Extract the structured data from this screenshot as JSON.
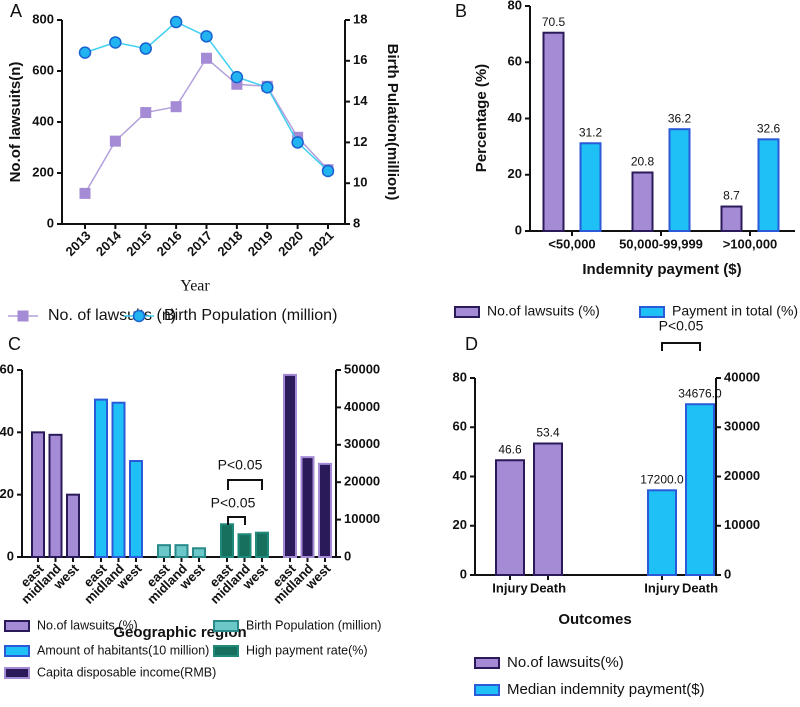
{
  "chart_data": [
    {
      "type": "line",
      "title": "A",
      "x_label": "Year",
      "y_label": "No.of lawsuits(n)",
      "y2_label": "Birth Pulation(million)",
      "categories": [
        "2013",
        "2014",
        "2015",
        "2016",
        "2017",
        "2018",
        "2019",
        "2020",
        "2021"
      ],
      "ylim": [
        0,
        800
      ],
      "yticks": [
        0,
        200,
        400,
        600,
        800
      ],
      "y2lim": [
        8,
        18
      ],
      "y2ticks": [
        8,
        10,
        12,
        14,
        16,
        18
      ],
      "series": [
        {
          "name": "No. of lawsuits (n)",
          "color": "#b3a0dc",
          "marker": "square",
          "marker_color": "#a58bd6",
          "marker_stroke": "#a58bd6",
          "values": [
            120,
            325,
            437,
            460,
            650,
            548,
            540,
            340,
            213
          ]
        },
        {
          "name": "Birth Population (million)",
          "color": "#3fd0f2",
          "marker": "circle",
          "marker_color": "#22b4f0",
          "marker_stroke": "#1a62d0",
          "axis": "y2",
          "values": [
            16.4,
            16.9,
            16.6,
            17.9,
            17.2,
            15.2,
            14.7,
            12.0,
            10.6
          ]
        }
      ]
    },
    {
      "type": "bar",
      "title": "B",
      "x_label": "Indemnity payment ($)",
      "y_label": "Percentage  (%)",
      "categories": [
        "<50,000",
        "50,000-99,999",
        ">100,000"
      ],
      "ylim": [
        0,
        80
      ],
      "yticks": [
        0,
        20,
        40,
        60,
        80
      ],
      "series": [
        {
          "name": "No.of lawsuits (%)",
          "color": "#a58bd6",
          "stroke": "#2b1a5a",
          "values": [
            70.5,
            20.8,
            8.7
          ]
        },
        {
          "name": "Payment in total (%)",
          "color": "#1ec0f5",
          "stroke": "#2a5ad8",
          "values": [
            31.2,
            36.2,
            32.6
          ]
        }
      ]
    },
    {
      "type": "bar",
      "title": "C",
      "x_label": "Geographic region",
      "categories": [
        "east",
        "midland",
        "west",
        "east",
        "midland",
        "west",
        "east",
        "midland",
        "west",
        "east",
        "midland",
        "west",
        "east",
        "midland",
        "west"
      ],
      "ylim": [
        0,
        60
      ],
      "yticks": [
        0,
        20,
        40,
        60
      ],
      "y2lim": [
        0,
        50000
      ],
      "y2ticks": [
        0,
        10000,
        20000,
        30000,
        40000,
        50000
      ],
      "annotations": [
        "P<0.05",
        "P<0.05"
      ],
      "series": [
        {
          "name": "No.of lawsuits (%)",
          "color": "#a58bd6",
          "stroke": "#2b1a5a",
          "values": [
            40,
            39.2,
            20,
            null,
            null,
            null,
            null,
            null,
            null,
            null,
            null,
            null,
            null,
            null,
            null
          ]
        },
        {
          "name": "Amount of habitants(10 million)",
          "color": "#1ec0f5",
          "stroke": "#2a5ad8",
          "values": [
            null,
            null,
            null,
            50.5,
            49.5,
            30.8,
            null,
            null,
            null,
            null,
            null,
            null,
            null,
            null,
            null
          ]
        },
        {
          "name": "Birth Population (million)",
          "color": "#6cc8c8",
          "stroke": "#2a8a8a",
          "values": [
            null,
            null,
            null,
            null,
            null,
            null,
            3.8,
            3.8,
            2.8,
            null,
            null,
            null,
            null,
            null,
            null
          ]
        },
        {
          "name": "High payment rate(%)",
          "color": "#17705e",
          "stroke": "#1f8a7a",
          "values": [
            null,
            null,
            null,
            null,
            null,
            null,
            null,
            null,
            null,
            10.5,
            7.3,
            7.8,
            null,
            null,
            null
          ]
        },
        {
          "name": "Capita disposable income(RMB)",
          "color": "#2b1a5a",
          "stroke": "#a58bd6",
          "axis": "y2",
          "values": [
            null,
            null,
            null,
            null,
            null,
            null,
            null,
            null,
            null,
            null,
            null,
            null,
            48700,
            26700,
            24900
          ]
        }
      ]
    },
    {
      "type": "bar",
      "title": "D",
      "x_label": "Outcomes",
      "categories": [
        "Injury",
        "Death",
        "Injury",
        "Death"
      ],
      "ylim": [
        0,
        80
      ],
      "yticks": [
        0,
        20,
        40,
        60,
        80
      ],
      "y2lim": [
        0,
        40000
      ],
      "y2ticks": [
        0,
        10000,
        20000,
        30000,
        40000
      ],
      "annotations": [
        "P<0.05"
      ],
      "series": [
        {
          "name": "No.of lawsuits(%)",
          "color": "#a58bd6",
          "stroke": "#2b1a5a",
          "values": [
            46.6,
            53.4,
            null,
            null
          ]
        },
        {
          "name": "Median indemnity payment($)",
          "color": "#1ec0f5",
          "stroke": "#2a5ad8",
          "axis": "y2",
          "values": [
            null,
            null,
            17200,
            34676
          ],
          "value_labels": [
            null,
            null,
            "17200.0",
            "34676.0"
          ]
        }
      ]
    }
  ]
}
